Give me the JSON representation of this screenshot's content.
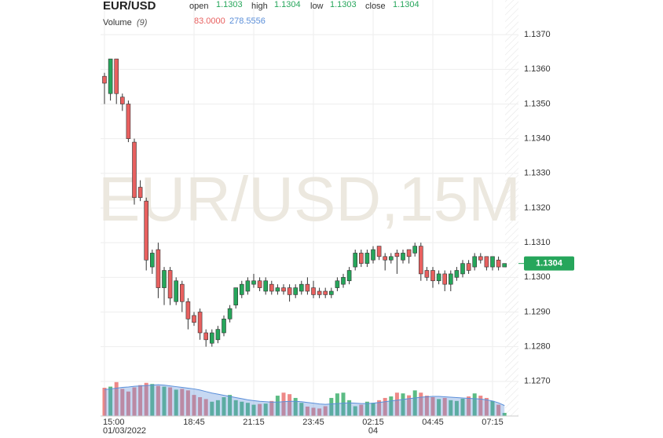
{
  "chart_data": {
    "type": "candlestick",
    "symbol": "EUR/USD",
    "watermark": "EUR/USD,15M",
    "legend": {
      "open_label": "open",
      "open": 1.1303,
      "high_label": "high",
      "high": 1.1304,
      "low_label": "low",
      "low": 1.1303,
      "close_label": "close",
      "close": 1.1304,
      "volume_label": "Volume",
      "volume_period": "(9)",
      "volume_value": "83.0000",
      "volume_ma_value": "278.5556"
    },
    "up_color": "#26a65b",
    "down_color": "#e8605f",
    "ma_color": "#5b8fd9",
    "ylim": [
      1.126,
      1.138
    ],
    "yticks": [
      {
        "value": 1.127,
        "label": "1.1270"
      },
      {
        "value": 1.128,
        "label": "1.1280"
      },
      {
        "value": 1.129,
        "label": "1.1290"
      },
      {
        "value": 1.13,
        "label": "1.1300"
      },
      {
        "value": 1.131,
        "label": "1.1310"
      },
      {
        "value": 1.132,
        "label": "1.1320"
      },
      {
        "value": 1.133,
        "label": "1.1330"
      },
      {
        "value": 1.134,
        "label": "1.1340"
      },
      {
        "value": 1.135,
        "label": "1.1350"
      },
      {
        "value": 1.136,
        "label": "1.1360"
      },
      {
        "value": 1.137,
        "label": "1.1370"
      }
    ],
    "last_price": 1.1304,
    "grid": true,
    "categories": [
      "15:00",
      null,
      null,
      null,
      null,
      null,
      null,
      null,
      null,
      null,
      null,
      null,
      null,
      null,
      null,
      "18:45",
      null,
      null,
      null,
      null,
      null,
      null,
      null,
      null,
      null,
      "21:15",
      null,
      null,
      null,
      null,
      null,
      null,
      null,
      null,
      null,
      "23:45",
      null,
      null,
      null,
      null,
      null,
      null,
      null,
      null,
      null,
      "02:15",
      null,
      null,
      null,
      null,
      null,
      null,
      null,
      null,
      null,
      "04:45",
      null,
      null,
      null,
      null,
      null,
      null,
      null,
      null,
      null,
      "07:15",
      null,
      null
    ],
    "dates": [
      "01/03/2022",
      null,
      null,
      null,
      null,
      null,
      null,
      null,
      null,
      null,
      null,
      null,
      null,
      null,
      null,
      null,
      null,
      null,
      null,
      null,
      null,
      null,
      null,
      null,
      null,
      null,
      null,
      null,
      null,
      null,
      null,
      null,
      null,
      null,
      null,
      null,
      null,
      null,
      null,
      null,
      null,
      null,
      null,
      null,
      null,
      "04",
      null,
      null,
      null,
      null,
      null,
      null,
      null,
      null,
      null,
      null,
      null,
      null,
      null,
      null,
      null,
      null,
      null,
      null,
      null,
      null,
      null,
      null
    ],
    "ohlc": [
      [
        1.1358,
        1.1359,
        1.135,
        1.1356
      ],
      [
        1.1353,
        1.1363,
        1.1351,
        1.1363
      ],
      [
        1.1363,
        1.1363,
        1.135,
        1.1353
      ],
      [
        1.1352,
        1.1353,
        1.1348,
        1.135
      ],
      [
        1.135,
        1.1351,
        1.1339,
        1.134
      ],
      [
        1.1339,
        1.134,
        1.1321,
        1.1323
      ],
      [
        1.1326,
        1.1328,
        1.1322,
        1.1323
      ],
      [
        1.1322,
        1.1323,
        1.1302,
        1.1305
      ],
      [
        1.1303,
        1.1308,
        1.1301,
        1.1307
      ],
      [
        1.1308,
        1.131,
        1.1294,
        1.1297
      ],
      [
        1.1297,
        1.1303,
        1.1292,
        1.1302
      ],
      [
        1.1302,
        1.1303,
        1.1292,
        1.1294
      ],
      [
        1.1293,
        1.13,
        1.1292,
        1.1299
      ],
      [
        1.1298,
        1.1299,
        1.129,
        1.1293
      ],
      [
        1.1293,
        1.1294,
        1.1285,
        1.1288
      ],
      [
        1.1289,
        1.129,
        1.1286,
        1.1287
      ],
      [
        1.129,
        1.1291,
        1.1282,
        1.1284
      ],
      [
        1.1284,
        1.1285,
        1.128,
        1.1282
      ],
      [
        1.1281,
        1.1285,
        1.128,
        1.1284
      ],
      [
        1.1282,
        1.1286,
        1.1281,
        1.1285
      ],
      [
        1.1284,
        1.1289,
        1.1283,
        1.1288
      ],
      [
        1.1288,
        1.1292,
        1.1287,
        1.1291
      ],
      [
        1.1292,
        1.1297,
        1.1291,
        1.1297
      ],
      [
        1.1295,
        1.1299,
        1.1294,
        1.1298
      ],
      [
        1.1296,
        1.13,
        1.1295,
        1.1299
      ],
      [
        1.1298,
        1.1301,
        1.1297,
        1.1299
      ],
      [
        1.1299,
        1.13,
        1.1296,
        1.1297
      ],
      [
        1.1296,
        1.13,
        1.1295,
        1.1299
      ],
      [
        1.1298,
        1.1299,
        1.1295,
        1.1296
      ],
      [
        1.1296,
        1.1298,
        1.1295,
        1.1297
      ],
      [
        1.1297,
        1.1298,
        1.1295,
        1.1296
      ],
      [
        1.1297,
        1.1298,
        1.1293,
        1.1295
      ],
      [
        1.1295,
        1.1298,
        1.1294,
        1.1297
      ],
      [
        1.1296,
        1.1299,
        1.1295,
        1.1298
      ],
      [
        1.1298,
        1.13,
        1.1295,
        1.1296
      ],
      [
        1.1297,
        1.1299,
        1.1294,
        1.1295
      ],
      [
        1.1296,
        1.1297,
        1.1294,
        1.1295
      ],
      [
        1.1296,
        1.1297,
        1.1294,
        1.1295
      ],
      [
        1.1295,
        1.1297,
        1.1294,
        1.1296
      ],
      [
        1.1297,
        1.13,
        1.1296,
        1.1299
      ],
      [
        1.1298,
        1.1301,
        1.1297,
        1.13
      ],
      [
        1.1299,
        1.1303,
        1.1298,
        1.1302
      ],
      [
        1.1303,
        1.1308,
        1.1302,
        1.1307
      ],
      [
        1.1307,
        1.1308,
        1.1303,
        1.1304
      ],
      [
        1.1304,
        1.1308,
        1.1303,
        1.1307
      ],
      [
        1.1305,
        1.1309,
        1.1304,
        1.1308
      ],
      [
        1.1309,
        1.1309,
        1.1305,
        1.1306
      ],
      [
        1.1306,
        1.1307,
        1.1302,
        1.1305
      ],
      [
        1.1305,
        1.1307,
        1.1304,
        1.1306
      ],
      [
        1.1307,
        1.1308,
        1.1301,
        1.1306
      ],
      [
        1.1305,
        1.1308,
        1.1304,
        1.1307
      ],
      [
        1.1308,
        1.1308,
        1.1304,
        1.1306
      ],
      [
        1.1307,
        1.131,
        1.1306,
        1.1309
      ],
      [
        1.1309,
        1.131,
        1.1299,
        1.1301
      ],
      [
        1.1302,
        1.1303,
        1.1299,
        1.13
      ],
      [
        1.1302,
        1.1303,
        1.1297,
        1.1299
      ],
      [
        1.1299,
        1.1302,
        1.1298,
        1.1301
      ],
      [
        1.1301,
        1.1302,
        1.1296,
        1.1298
      ],
      [
        1.1298,
        1.1302,
        1.1296,
        1.1301
      ],
      [
        1.13,
        1.1303,
        1.1299,
        1.1302
      ],
      [
        1.1301,
        1.1305,
        1.13,
        1.1304
      ],
      [
        1.1304,
        1.1305,
        1.1301,
        1.1302
      ],
      [
        1.1303,
        1.1307,
        1.1302,
        1.1306
      ],
      [
        1.1306,
        1.1307,
        1.1304,
        1.1305
      ],
      [
        1.1306,
        1.1306,
        1.1302,
        1.1303
      ],
      [
        1.1303,
        1.1306,
        1.1302,
        1.1306
      ],
      [
        1.1305,
        1.1306,
        1.1302,
        1.1303
      ],
      [
        1.1303,
        1.1304,
        1.1303,
        1.1304
      ]
    ],
    "volume_ylim": [
      0,
      2500
    ],
    "volumes": [
      750,
      780,
      900,
      720,
      650,
      760,
      820,
      880,
      850,
      800,
      780,
      760,
      700,
      720,
      680,
      560,
      500,
      450,
      380,
      420,
      500,
      560,
      420,
      380,
      350,
      300,
      320,
      330,
      400,
      540,
      620,
      580,
      480,
      350,
      250,
      220,
      200,
      260,
      480,
      600,
      620,
      420,
      260,
      300,
      380,
      350,
      420,
      480,
      520,
      620,
      600,
      550,
      680,
      620,
      540,
      500,
      450,
      480,
      420,
      400,
      460,
      520,
      600,
      540,
      480,
      400,
      300,
      83
    ],
    "volume_ma": [
      700,
      720,
      740,
      760,
      770,
      790,
      800,
      810,
      820,
      830,
      820,
      800,
      780,
      760,
      740,
      720,
      690,
      650,
      610,
      580,
      550,
      520,
      490,
      460,
      430,
      410,
      390,
      380,
      370,
      370,
      380,
      390,
      390,
      380,
      360,
      340,
      320,
      310,
      320,
      330,
      340,
      350,
      340,
      330,
      330,
      340,
      360,
      380,
      400,
      420,
      440,
      460,
      480,
      500,
      510,
      520,
      520,
      510,
      500,
      490,
      480,
      470,
      460,
      450,
      430,
      400,
      350,
      278.5556
    ]
  }
}
